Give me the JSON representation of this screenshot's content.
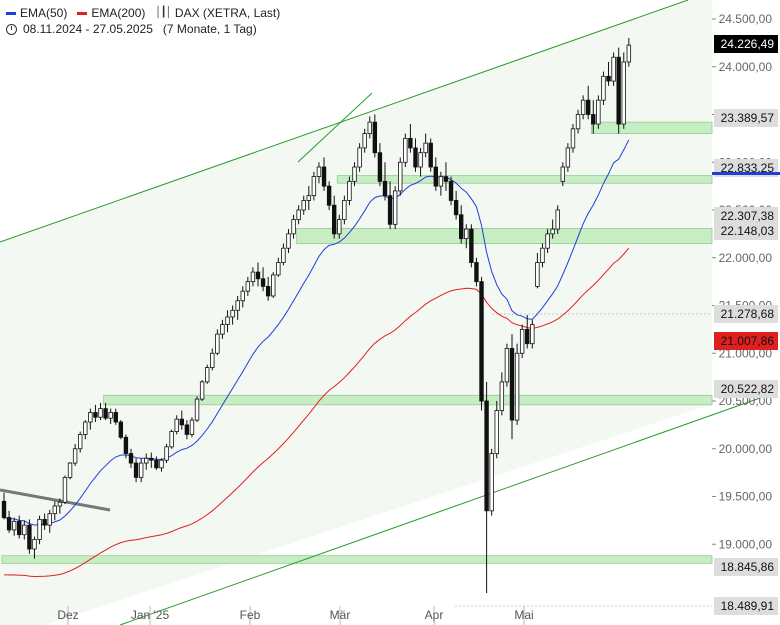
{
  "legend": {
    "ema50_label": "EMA(50)",
    "ema200_label": "EMA(200)",
    "series_label": "DAX (XETRA, Last)",
    "date_range": "08.11.2024 - 27.05.2025",
    "period": "(7 Monate, 1 Tag)",
    "ema50_color": "#1f3fd8",
    "ema200_color": "#e02020",
    "bars_icon": "bars-icon",
    "clock_icon": "clock-icon"
  },
  "chart_data": {
    "type": "candlestick",
    "yaxis_ticks": [
      "19.000,00",
      "19.500,00",
      "20.000,00",
      "20.500,00",
      "21.000,00",
      "21.500,00",
      "22.000,00",
      "22.500,00",
      "23.000,00",
      "23.500,00",
      "24.000,00",
      "24.500,00"
    ],
    "ylim": [
      18450,
      24750
    ],
    "xaxis_ticks": [
      "Dez",
      "Jan '25",
      "Feb",
      "Mär",
      "Apr",
      "Mai"
    ],
    "price_labels": [
      {
        "text": "24.226,49",
        "value": 24226.49,
        "bg": "#000000",
        "fg": "#ffffff"
      },
      {
        "text": "23.389,57",
        "value": 23389.57,
        "bg": "#dddddd",
        "fg": "#111111"
      },
      {
        "text": "22.833,25",
        "value": 22833.25,
        "bg": "#dddddd",
        "fg": "#111111"
      },
      {
        "text": "22.307,38",
        "value": 22307.38,
        "bg": "#dddddd",
        "fg": "#111111"
      },
      {
        "text": "22.148,03",
        "value": 22148.03,
        "bg": "#dddddd",
        "fg": "#111111"
      },
      {
        "text": "21.278,68",
        "value": 21278.68,
        "bg": "#dddddd",
        "fg": "#111111"
      },
      {
        "text": "21.007,86",
        "value": 21007.86,
        "bg": "#e02020",
        "fg": "#111111"
      },
      {
        "text": "20.522,82",
        "value": 20522.82,
        "bg": "#dddddd",
        "fg": "#111111"
      },
      {
        "text": "18.845,86",
        "value": 18845.86,
        "bg": "#dddddd",
        "fg": "#111111"
      },
      {
        "text": "18.489,91",
        "value": 18489.91,
        "bg": "#dddddd",
        "fg": "#111111"
      }
    ],
    "support_zones": [
      {
        "low": 23300,
        "high": 23420,
        "from_index": 116
      },
      {
        "low": 22780,
        "high": 22860,
        "from_index": 66
      },
      {
        "low": 22148,
        "high": 22307,
        "from_index": 58
      },
      {
        "low": 20460,
        "high": 20560,
        "from_index": 20
      },
      {
        "low": 18800,
        "high": 18880,
        "from_index": 0
      }
    ],
    "candles": [
      [
        19450,
        19540,
        19260,
        19280
      ],
      [
        19280,
        19350,
        19120,
        19150
      ],
      [
        19150,
        19280,
        19090,
        19240
      ],
      [
        19240,
        19300,
        19060,
        19100
      ],
      [
        19100,
        19250,
        19050,
        19200
      ],
      [
        19200,
        19260,
        18900,
        18950
      ],
      [
        18950,
        19080,
        18850,
        19050
      ],
      [
        19050,
        19300,
        19000,
        19260
      ],
      [
        19260,
        19320,
        19150,
        19200
      ],
      [
        19200,
        19360,
        19120,
        19320
      ],
      [
        19320,
        19450,
        19250,
        19400
      ],
      [
        19400,
        19480,
        19320,
        19440
      ],
      [
        19440,
        19720,
        19420,
        19700
      ],
      [
        19700,
        19860,
        19680,
        19850
      ],
      [
        19850,
        20050,
        19820,
        20000
      ],
      [
        20000,
        20180,
        19960,
        20150
      ],
      [
        20150,
        20300,
        20100,
        20280
      ],
      [
        20280,
        20420,
        20200,
        20380
      ],
      [
        20380,
        20460,
        20280,
        20330
      ],
      [
        20330,
        20480,
        20300,
        20420
      ],
      [
        20420,
        20480,
        20300,
        20320
      ],
      [
        20320,
        20420,
        20260,
        20380
      ],
      [
        20380,
        20420,
        20250,
        20280
      ],
      [
        20280,
        20300,
        20100,
        20120
      ],
      [
        20120,
        20150,
        19900,
        19950
      ],
      [
        19950,
        20000,
        19800,
        19850
      ],
      [
        19850,
        19900,
        19650,
        19700
      ],
      [
        19700,
        19900,
        19650,
        19850
      ],
      [
        19850,
        19950,
        19780,
        19900
      ],
      [
        19900,
        19960,
        19800,
        19880
      ],
      [
        19880,
        19920,
        19780,
        19800
      ],
      [
        19800,
        19900,
        19760,
        19880
      ],
      [
        19880,
        20050,
        19850,
        20020
      ],
      [
        20020,
        20200,
        20000,
        20180
      ],
      [
        20180,
        20350,
        20150,
        20310
      ],
      [
        20310,
        20400,
        20200,
        20250
      ],
      [
        20250,
        20300,
        20100,
        20150
      ],
      [
        20150,
        20330,
        20120,
        20300
      ],
      [
        20300,
        20550,
        20280,
        20520
      ],
      [
        20520,
        20720,
        20500,
        20700
      ],
      [
        20700,
        20880,
        20680,
        20850
      ],
      [
        20850,
        21050,
        20820,
        21000
      ],
      [
        21000,
        21250,
        20980,
        21200
      ],
      [
        21200,
        21350,
        21150,
        21300
      ],
      [
        21300,
        21450,
        21220,
        21380
      ],
      [
        21380,
        21500,
        21300,
        21450
      ],
      [
        21450,
        21600,
        21350,
        21550
      ],
      [
        21550,
        21700,
        21480,
        21650
      ],
      [
        21650,
        21800,
        21600,
        21750
      ],
      [
        21750,
        21900,
        21700,
        21850
      ],
      [
        21850,
        21950,
        21700,
        21780
      ],
      [
        21780,
        21900,
        21650,
        21700
      ],
      [
        21700,
        21800,
        21550,
        21600
      ],
      [
        21600,
        21850,
        21580,
        21820
      ],
      [
        21820,
        22000,
        21800,
        21950
      ],
      [
        21950,
        22150,
        21920,
        22100
      ],
      [
        22100,
        22300,
        22050,
        22250
      ],
      [
        22250,
        22450,
        22200,
        22400
      ],
      [
        22400,
        22550,
        22350,
        22500
      ],
      [
        22500,
        22650,
        22450,
        22600
      ],
      [
        22600,
        22750,
        22500,
        22650
      ],
      [
        22650,
        22900,
        22600,
        22850
      ],
      [
        22850,
        23000,
        22780,
        22950
      ],
      [
        22950,
        23050,
        22700,
        22750
      ],
      [
        22750,
        22800,
        22500,
        22550
      ],
      [
        22550,
        22650,
        22200,
        22250
      ],
      [
        22250,
        22450,
        22200,
        22400
      ],
      [
        22400,
        22650,
        22350,
        22600
      ],
      [
        22600,
        22850,
        22550,
        22800
      ],
      [
        22800,
        23000,
        22750,
        22950
      ],
      [
        22950,
        23200,
        22900,
        23150
      ],
      [
        23150,
        23350,
        23100,
        23300
      ],
      [
        23300,
        23480,
        23250,
        23420
      ],
      [
        23420,
        23500,
        23050,
        23100
      ],
      [
        23100,
        23200,
        22750,
        22800
      ],
      [
        22800,
        23000,
        22600,
        22650
      ],
      [
        22650,
        22800,
        22300,
        22350
      ],
      [
        22350,
        22750,
        22300,
        22700
      ],
      [
        22700,
        23050,
        22650,
        23000
      ],
      [
        23000,
        23300,
        22950,
        23250
      ],
      [
        23250,
        23400,
        23100,
        23150
      ],
      [
        23150,
        23250,
        22900,
        22950
      ],
      [
        22950,
        23150,
        22850,
        23100
      ],
      [
        23100,
        23300,
        23050,
        23200
      ],
      [
        23200,
        23250,
        22900,
        22950
      ],
      [
        22950,
        23050,
        22700,
        22750
      ],
      [
        22750,
        22900,
        22650,
        22850
      ],
      [
        22850,
        23000,
        22700,
        22800
      ],
      [
        22800,
        22850,
        22550,
        22600
      ],
      [
        22600,
        22700,
        22400,
        22450
      ],
      [
        22450,
        22550,
        22150,
        22200
      ],
      [
        22200,
        22350,
        22100,
        22300
      ],
      [
        22300,
        22350,
        21900,
        21950
      ],
      [
        21950,
        22000,
        21700,
        21750
      ],
      [
        21750,
        21800,
        20400,
        20500
      ],
      [
        20500,
        20700,
        18490,
        19350
      ],
      [
        19350,
        20000,
        19300,
        19950
      ],
      [
        19950,
        20500,
        19900,
        20400
      ],
      [
        20400,
        20800,
        20350,
        20700
      ],
      [
        20700,
        21100,
        20650,
        21050
      ],
      [
        21050,
        21200,
        20100,
        20300
      ],
      [
        20300,
        21100,
        20250,
        21000
      ],
      [
        21000,
        21300,
        20950,
        21250
      ],
      [
        21250,
        21400,
        21050,
        21100
      ],
      [
        21100,
        21350,
        21050,
        21300
      ],
      [
        21700,
        22050,
        21680,
        21950
      ],
      [
        21950,
        22150,
        21900,
        22100
      ],
      [
        22100,
        22300,
        22050,
        22250
      ],
      [
        22250,
        22400,
        22200,
        22300
      ],
      [
        22300,
        22550,
        22250,
        22500
      ],
      [
        22800,
        23000,
        22750,
        22950
      ],
      [
        22950,
        23200,
        22900,
        23150
      ],
      [
        23150,
        23400,
        23100,
        23350
      ],
      [
        23350,
        23550,
        23300,
        23500
      ],
      [
        23500,
        23700,
        23450,
        23650
      ],
      [
        23650,
        23800,
        23450,
        23500
      ],
      [
        23500,
        23650,
        23300,
        23400
      ],
      [
        23400,
        23700,
        23350,
        23650
      ],
      [
        23650,
        23950,
        23600,
        23900
      ],
      [
        23900,
        24050,
        23800,
        23850
      ],
      [
        23850,
        24150,
        23800,
        24100
      ],
      [
        24100,
        24200,
        23300,
        23400
      ],
      [
        23400,
        24150,
        23350,
        24050
      ],
      [
        24050,
        24300,
        24000,
        24226
      ]
    ]
  }
}
